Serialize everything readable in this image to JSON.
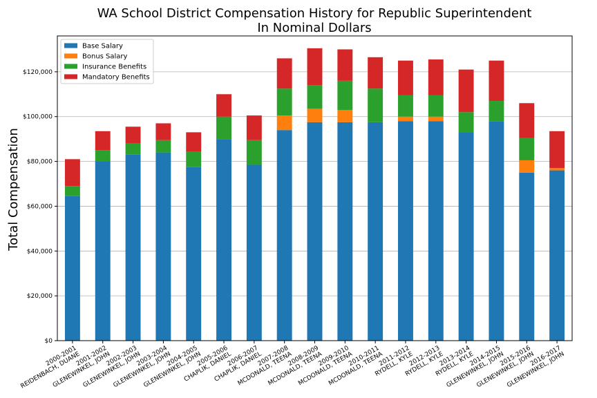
{
  "chart_data": {
    "type": "bar",
    "stacked": true,
    "title": "WA School District Compensation History for Republic Superintendent",
    "subtitle": "In Nominal Dollars",
    "xlabel": "",
    "ylabel": "Total Compensation",
    "ylim": [
      0,
      136000
    ],
    "yticks": [
      "$0",
      "$20,000",
      "$40,000",
      "$60,000",
      "$80,000",
      "$100,000",
      "$120,000"
    ],
    "grid": "horizontal",
    "legend_position": "top-left",
    "categories": [
      [
        "2000-2001",
        "REIDENBACH, DUANE"
      ],
      [
        "2001-2002",
        "GLENEWINKEL, JOHN"
      ],
      [
        "2002-2003",
        "GLENEWINKEL, JOHN"
      ],
      [
        "2003-2004",
        "GLENEWINKEL, JOHN"
      ],
      [
        "2004-2005",
        "GLENEWINKEL, JOHN"
      ],
      [
        "2005-2006",
        "CHAPLIK, DANIEL"
      ],
      [
        "2006-2007",
        "CHAPLIK, DANIEL"
      ],
      [
        "2007-2008",
        "MCDONALD, TEENA"
      ],
      [
        "2008-2009",
        "MCDONALD, TEENA"
      ],
      [
        "2009-2010",
        "MCDONALD, TEENA"
      ],
      [
        "2010-2011",
        "MCDONALD, TEENA"
      ],
      [
        "2011-2012",
        "RYDELL, KYLE"
      ],
      [
        "2012-2013",
        "RYDELL, KYLE"
      ],
      [
        "2013-2014",
        "RYDELL, KYLE"
      ],
      [
        "2014-2015",
        "GLENEWINKEL, JOHN"
      ],
      [
        "2015-2016",
        "GLENEWINKEL, JOHN"
      ],
      [
        "2016-2017",
        "GLENEWINKEL, JOHN"
      ]
    ],
    "series": [
      {
        "name": "Base Salary",
        "color": "#1f77b4",
        "values": [
          64500,
          80000,
          83000,
          84000,
          77500,
          90000,
          78500,
          94000,
          97500,
          97500,
          97500,
          98000,
          98000,
          93000,
          98000,
          75000,
          76000
        ]
      },
      {
        "name": "Bonus Salary",
        "color": "#ff7f0e",
        "values": [
          0,
          0,
          0,
          0,
          0,
          0,
          0,
          6500,
          6000,
          5500,
          0,
          2000,
          2000,
          0,
          0,
          5500,
          1000
        ]
      },
      {
        "name": "Insurance Benefits",
        "color": "#2ca02c",
        "values": [
          4500,
          5000,
          5000,
          5500,
          7000,
          10000,
          11000,
          12000,
          10500,
          13000,
          15000,
          9500,
          9500,
          9000,
          9000,
          10000,
          0
        ]
      },
      {
        "name": "Mandatory Benefits",
        "color": "#d62728",
        "values": [
          12000,
          8500,
          7500,
          7500,
          8500,
          10000,
          11000,
          13500,
          16500,
          14000,
          14000,
          15500,
          16000,
          19000,
          18000,
          15500,
          16500
        ]
      }
    ]
  }
}
